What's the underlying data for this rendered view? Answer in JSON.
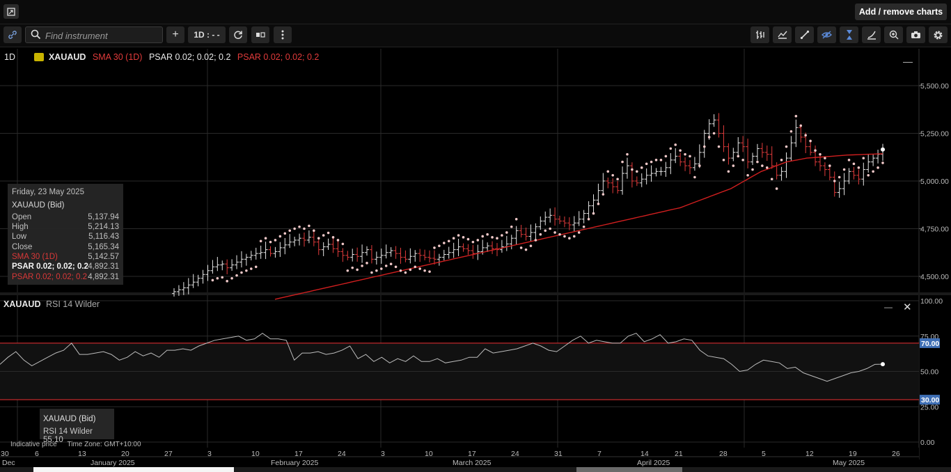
{
  "topbar": {
    "expand_icon": "expand-icon",
    "add_remove_label": "Add / remove charts"
  },
  "toolbar": {
    "link_icon": "link-icon",
    "search_placeholder": "Find instrument",
    "add_label": "+",
    "interval_label": "1D : - -",
    "right_icons": [
      "bar-style-icon",
      "line-style-icon",
      "draw-line-icon",
      "eye-hide-icon",
      "crosshair-icon",
      "indicator-icon",
      "zoom-icon",
      "camera-icon",
      "gear-icon"
    ]
  },
  "legend": {
    "timeframe": "1D",
    "symbol": "XAUAUD",
    "sma": "SMA 30 (1D)",
    "psar1": "PSAR 0.02; 0.02; 0.2",
    "psar2": "PSAR 0.02; 0.02; 0.2"
  },
  "tooltip": {
    "date": "Friday, 23 May 2025",
    "title": "XAUAUD (Bid)",
    "rows": [
      {
        "label": "Open",
        "value": "5,137.94"
      },
      {
        "label": "High",
        "value": "5,214.13"
      },
      {
        "label": "Low",
        "value": "5,116.43"
      },
      {
        "label": "Close",
        "value": "5,165.34"
      },
      {
        "label": "SMA 30 (1D)",
        "value": "5,142.57"
      },
      {
        "label": "PSAR 0.02; 0.02; 0.2",
        "value": "4,892.31"
      },
      {
        "label": "PSAR 0.02; 0.02; 0.2",
        "value": "4,892.31"
      }
    ]
  },
  "rsi_panel": {
    "symbol": "XAUAUD",
    "indicator": "RSI 14 Wilder",
    "tooltip_title": "XAUAUD (Bid)",
    "tooltip_line": "RSI 14 Wilder 55.10"
  },
  "footer": {
    "indicative": "Indicative price",
    "timezone": "Time Zone: GMT+10:00"
  },
  "colors": {
    "up": "#e8e8e8",
    "down": "#e23b3b",
    "sma": "#d11f1f",
    "psar": "#f0c8c8",
    "rsi_line": "#bdbdbd",
    "band": "#c0292b",
    "badge": "#3f6fb5"
  },
  "chart_data": [
    {
      "type": "ohlc",
      "title": "XAUAUD",
      "y_ticks": [
        "5,500.00",
        "5,250.00",
        "5,000.00",
        "4,750.00",
        "4,500.00"
      ],
      "y_tick_values": [
        5500,
        5250,
        5000,
        4750,
        4500
      ],
      "ylim": [
        4420,
        5720
      ],
      "x_day_labels": [
        "30",
        "6",
        "13",
        "20",
        "27",
        "3",
        "10",
        "17",
        "24",
        "3",
        "10",
        "17",
        "24",
        "31",
        "7",
        "14",
        "21",
        "28",
        "5",
        "12",
        "19",
        "26"
      ],
      "x_month_labels": [
        "Dec",
        "January 2025",
        "February 2025",
        "March 2025",
        "April 2025",
        "May 2025"
      ],
      "series": [
        {
          "name": "XAUAUD",
          "close": [
            4420,
            4430,
            4440,
            4455,
            4470,
            4490,
            4510,
            4530,
            4550,
            4560,
            4565,
            4545,
            4560,
            4575,
            4590,
            4600,
            4610,
            4620,
            4625,
            4640,
            4620,
            4630,
            4650,
            4665,
            4680,
            4690,
            4700,
            4690,
            4705,
            4680,
            4640,
            4655,
            4668,
            4645,
            4630,
            4610,
            4600,
            4615,
            4605,
            4625,
            4640,
            4590,
            4600,
            4610,
            4625,
            4635,
            4620,
            4600,
            4590,
            4605,
            4620,
            4610,
            4600,
            4595,
            4590,
            4600,
            4615,
            4625,
            4640,
            4655,
            4645,
            4635,
            4620,
            4630,
            4650,
            4660,
            4645,
            4640,
            4655,
            4670,
            4700,
            4740,
            4720,
            4710,
            4730,
            4760,
            4790,
            4810,
            4820,
            4800,
            4790,
            4780,
            4770,
            4780,
            4800,
            4830,
            4870,
            4900,
            4950,
            5000,
            4990,
            4970,
            4950,
            5040,
            5080,
            5000,
            4990,
            5010,
            5030,
            5040,
            5050,
            5050,
            5070,
            5110,
            5130,
            5100,
            5080,
            5070,
            5090,
            5150,
            5250,
            5300,
            5320,
            5250,
            5180,
            5120,
            5150,
            5200,
            5180,
            5100,
            5130,
            5170,
            5150,
            5140,
            5080,
            5030,
            5050,
            5120,
            5200,
            5280,
            5230,
            5180,
            5150,
            5100,
            5080,
            5060,
            5020,
            4940,
            4960,
            5000,
            5050,
            5030,
            5010,
            5060,
            5100,
            5120,
            5140,
            5165
          ],
          "sma": [
            4380,
            4386,
            4392,
            4398,
            4404,
            4410,
            4416,
            4422,
            4428,
            4434,
            4440,
            4446,
            4452,
            4458,
            4464,
            4470,
            4476,
            4482,
            4488,
            4494,
            4500,
            4506,
            4512,
            4518,
            4524,
            4530,
            4536,
            4542,
            4548,
            4554,
            4560,
            4566,
            4572,
            4578,
            4584,
            4590,
            4596,
            4602,
            4608,
            4614,
            4620,
            4626,
            4632,
            4638,
            4644,
            4650,
            4656,
            4662,
            4668,
            4674,
            4680,
            4686,
            4692,
            4698,
            4704,
            4710,
            4716,
            4722,
            4728,
            4734,
            4740,
            4746,
            4752,
            4758,
            4764,
            4770,
            4776,
            4782,
            4788,
            4794,
            4800,
            4806,
            4812,
            4818,
            4824,
            4830,
            4836,
            4842,
            4848,
            4854,
            4860,
            4870,
            4880,
            4890,
            4900,
            4910,
            4920,
            4930,
            4940,
            4950,
            4960,
            4975,
            4990,
            5005,
            5020,
            5035,
            5050,
            5060,
            5070,
            5080,
            5090,
            5100,
            5105,
            5110,
            5115,
            5120,
            5122,
            5124,
            5126,
            5128,
            5130,
            5132,
            5134,
            5136,
            5137,
            5138,
            5139,
            5140,
            5141,
            5142,
            5142.57
          ]
        }
      ]
    },
    {
      "type": "line",
      "title": "RSI 14 Wilder",
      "y_ticks": [
        "100.00",
        "75.00",
        "50.00",
        "25.00",
        "0.00"
      ],
      "y_tick_values": [
        100,
        75,
        50,
        25,
        0
      ],
      "ylim": [
        0,
        100
      ],
      "bands": [
        70,
        30
      ],
      "band_labels": [
        "70.00",
        "30.00"
      ],
      "series": [
        {
          "name": "RSI 14 Wilder",
          "values": [
            55,
            60,
            64,
            58,
            54,
            57,
            60,
            63,
            65,
            70,
            62,
            62,
            63,
            64,
            62,
            58,
            60,
            64,
            61,
            63,
            60,
            65,
            65,
            66,
            65,
            68,
            70,
            72,
            73,
            74,
            75,
            72,
            73,
            77,
            73,
            73,
            72,
            58,
            63,
            63,
            64,
            62,
            63,
            65,
            68,
            59,
            62,
            57,
            60,
            56,
            59,
            57,
            61,
            57,
            57,
            59,
            56,
            57,
            58,
            60,
            60,
            66,
            63,
            64,
            65,
            66,
            68,
            70,
            68,
            65,
            64,
            68,
            72,
            75,
            70,
            72,
            71,
            70,
            70,
            75,
            77,
            71,
            73,
            76,
            70,
            71,
            73,
            72,
            65,
            61,
            60,
            59,
            55,
            50,
            51,
            55,
            58,
            57,
            56,
            52,
            53,
            49,
            47,
            45,
            43,
            45,
            47,
            49,
            50,
            52,
            55,
            55.1
          ]
        }
      ]
    }
  ]
}
